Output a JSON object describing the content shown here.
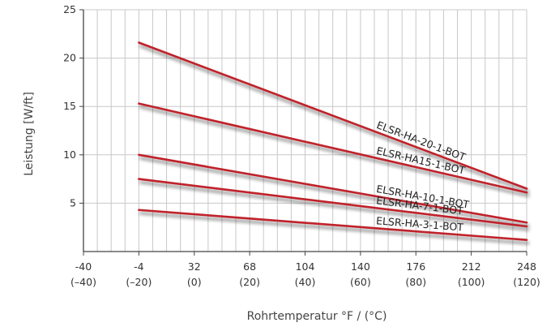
{
  "chart_data": {
    "type": "line",
    "xlabel": "Rohrtemperatur °F / (°C)",
    "ylabel": "Leistung [W/ft]",
    "xlim": [
      -40,
      248
    ],
    "ylim": [
      0,
      25
    ],
    "grid": true,
    "x_ticks": [
      {
        "value": -40,
        "label": "-40",
        "sublabel": "(–40)"
      },
      {
        "value": -4,
        "label": "-4",
        "sublabel": "(–20)"
      },
      {
        "value": 32,
        "label": "32",
        "sublabel": "(0)"
      },
      {
        "value": 68,
        "label": "68",
        "sublabel": "(20)"
      },
      {
        "value": 104,
        "label": "104",
        "sublabel": "(40)"
      },
      {
        "value": 140,
        "label": "140",
        "sublabel": "(60)"
      },
      {
        "value": 176,
        "label": "176",
        "sublabel": "(80)"
      },
      {
        "value": 212,
        "label": "212",
        "sublabel": "(100)"
      },
      {
        "value": 248,
        "label": "248",
        "sublabel": "(120)"
      }
    ],
    "y_ticks": [
      {
        "value": 5,
        "label": "5"
      },
      {
        "value": 10,
        "label": "10"
      },
      {
        "value": 15,
        "label": "15"
      },
      {
        "value": 20,
        "label": "20"
      },
      {
        "value": 25,
        "label": "25"
      }
    ],
    "series_color": "#c0202a",
    "series": [
      {
        "name": "ELSR-HA-20-1-BOT",
        "x": [
          -4,
          248
        ],
        "y": [
          21.6,
          6.5
        ]
      },
      {
        "name": "ELSR-HA15-1-BOT",
        "x": [
          -4,
          248
        ],
        "y": [
          15.3,
          6.1
        ]
      },
      {
        "name": "ELSR-HA-10-1-BOT",
        "x": [
          -4,
          248
        ],
        "y": [
          10.0,
          3.0
        ]
      },
      {
        "name": "ELSR-HA-7-1-BOT",
        "x": [
          -4,
          248
        ],
        "y": [
          7.5,
          2.6
        ]
      },
      {
        "name": "ELSR-HA-3-1-BOT",
        "x": [
          -4,
          248
        ],
        "y": [
          4.3,
          1.2
        ]
      }
    ]
  }
}
